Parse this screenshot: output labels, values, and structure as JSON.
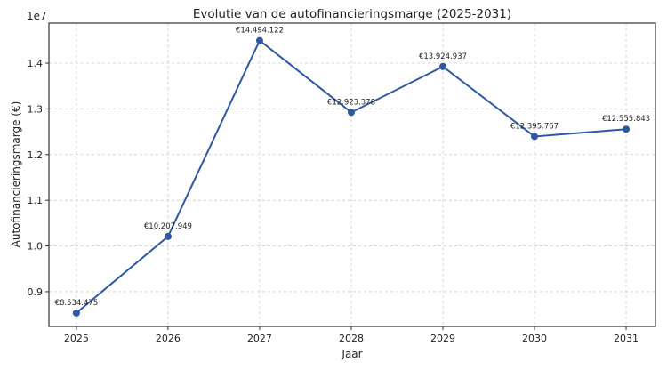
{
  "chart_data": {
    "type": "line",
    "title": "Evolutie van de autofinancieringsmarge (2025-2031)",
    "xlabel": "Jaar",
    "ylabel": "Autofinancieringsmarge (€)",
    "y_offset_label": "1e7",
    "x": [
      2025,
      2026,
      2027,
      2028,
      2029,
      2030,
      2031
    ],
    "x_tick_labels": [
      "2025",
      "2026",
      "2027",
      "2028",
      "2029",
      "2030",
      "2031"
    ],
    "values": [
      8534475,
      10207949,
      14494122,
      12923378,
      13924937,
      12395767,
      12555843
    ],
    "data_labels": [
      "€8.534.475",
      "€10.207.949",
      "€14.494.122",
      "€12.923.378",
      "€13.924.937",
      "€12.395.767",
      "€12.555.843"
    ],
    "y_ticks": [
      0.9,
      1.0,
      1.1,
      1.2,
      1.3,
      1.4
    ],
    "y_tick_labels": [
      "0.9",
      "1.0",
      "1.1",
      "1.2",
      "1.3",
      "1.4"
    ],
    "ylim": [
      8240000,
      14876000
    ],
    "xlim": [
      2024.7,
      2031.32
    ],
    "grid": true,
    "line_color": "#2f58a0"
  }
}
